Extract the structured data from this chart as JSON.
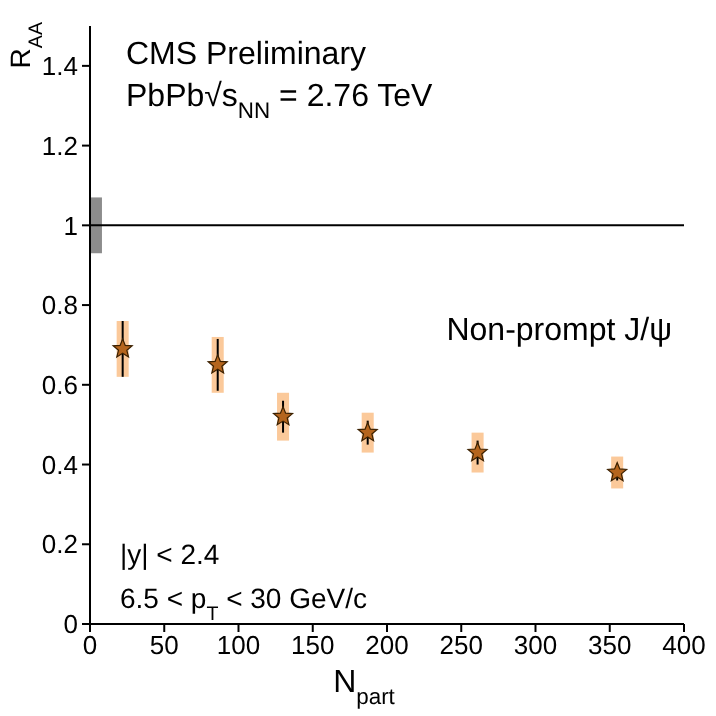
{
  "chart_data": {
    "type": "scatter",
    "xlabel": "N$_{part}$",
    "ylabel": "R$_{AA}$",
    "annotations": [
      "CMS Preliminary",
      "PbPb√s$_{NN}$ = 2.76 TeV",
      "Non-prompt J/ψ",
      "|y| < 2.4",
      "6.5 < p$_{T}$ < 30 GeV/c"
    ],
    "series": [
      {
        "type": "bar",
        "color": "#fbc99a",
        "x": [
          22,
          86,
          130,
          187,
          261,
          355
        ],
        "base": [
          0.62,
          0.58,
          0.46,
          0.43,
          0.38,
          0.34
        ],
        "values": [
          0.14,
          0.14,
          0.12,
          0.1,
          0.1,
          0.08
        ]
      },
      {
        "type": "bar",
        "color": "#8c8c8c",
        "x": [
          4
        ],
        "base": [
          0.93
        ],
        "values": [
          0.14
        ]
      },
      {
        "color": "#b5651d",
        "x": [
          22,
          86,
          130,
          187,
          261,
          355
        ],
        "values": [
          0.69,
          0.65,
          0.52,
          0.48,
          0.43,
          0.38
        ],
        "errors": [
          0.07,
          0.065,
          0.04,
          0.03,
          0.03,
          0.02
        ]
      }
    ],
    "marker": "star",
    "ref_lines": [
      {
        "axis": "y",
        "value": 1,
        "color": "#000000"
      }
    ],
    "xlim": [
      0,
      400
    ],
    "xticks": [
      0,
      50,
      100,
      150,
      200,
      250,
      300,
      350,
      400
    ],
    "ylim": [
      0,
      1.5
    ],
    "yticks": [
      0,
      {
        "value": 0.2,
        "label": "0.2"
      },
      {
        "value": 0.4,
        "label": "0.4"
      },
      {
        "value": 0.6,
        "label": "0.6"
      },
      {
        "value": 0.8,
        "label": "0.8"
      },
      1,
      {
        "value": 1.2,
        "label": "1.2"
      },
      {
        "value": 1.4,
        "label": "1.4"
      }
    ],
    "grid": false
  }
}
